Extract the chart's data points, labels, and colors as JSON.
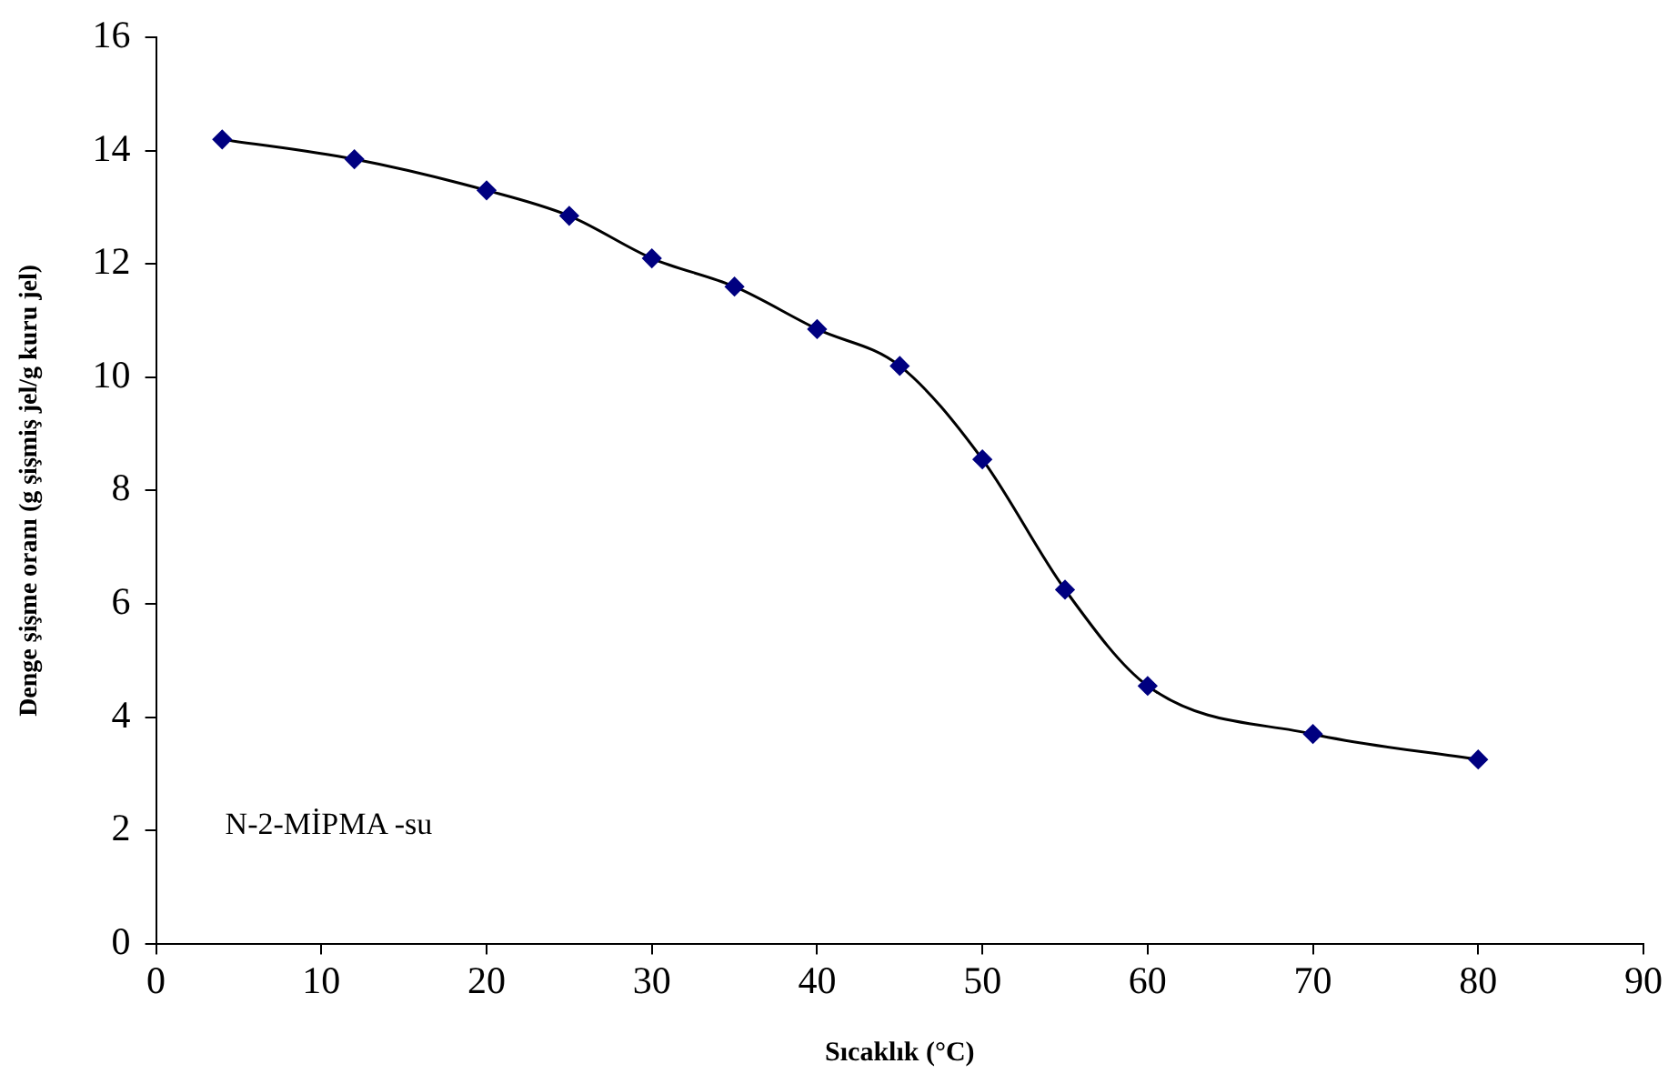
{
  "chart_data": {
    "type": "line",
    "xlabel": "Sıcaklık (°C)",
    "ylabel": "Denge şişme oranı (g şişmiş jel/g kuru jel)",
    "annotations": [
      "N-2-MİPMA -su"
    ],
    "x": [
      4,
      12,
      20,
      25,
      30,
      35,
      40,
      45,
      50,
      55,
      60,
      70,
      80
    ],
    "series": [
      {
        "color": "#000080",
        "values": [
          14.2,
          13.85,
          13.3,
          12.85,
          12.1,
          11.6,
          10.85,
          10.2,
          8.55,
          6.25,
          4.55,
          3.7,
          3.25
        ]
      }
    ],
    "xlim": [
      0,
      90
    ],
    "xticks": [
      0,
      10,
      20,
      30,
      40,
      50,
      60,
      70,
      80,
      90
    ],
    "ylim": [
      0,
      16
    ],
    "yticks": [
      0,
      2,
      4,
      6,
      8,
      10,
      12,
      14,
      16
    ],
    "marker": "diamond",
    "line_style": "solid",
    "legend": false
  }
}
